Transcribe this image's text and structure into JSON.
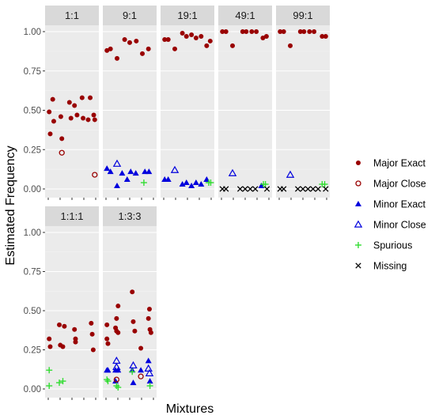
{
  "chart_data": {
    "type": "scatter",
    "xlabel": "Mixtures",
    "ylabel": "Estimated Frequency",
    "ylim": [
      0,
      1
    ],
    "yticks": [
      "0.00",
      "0.25",
      "0.50",
      "0.75",
      "1.00"
    ],
    "legend_position": "right",
    "grid": true,
    "series": [
      {
        "name": "Major Exact",
        "shape": "filled-circle",
        "color": "#990000"
      },
      {
        "name": "Major Close",
        "shape": "open-circle",
        "color": "#990000"
      },
      {
        "name": "Minor Exact",
        "shape": "filled-triangle",
        "color": "#0000dd"
      },
      {
        "name": "Minor Close",
        "shape": "open-triangle",
        "color": "#0000dd"
      },
      {
        "name": "Spurious",
        "shape": "plus",
        "color": "#33dd33"
      },
      {
        "name": "Missing",
        "shape": "cross",
        "color": "#000000"
      }
    ],
    "panels": [
      {
        "label": "1:1",
        "points": [
          {
            "s": 0,
            "x": 0.05,
            "y": 0.49
          },
          {
            "s": 0,
            "x": 0.07,
            "y": 0.35
          },
          {
            "s": 0,
            "x": 0.12,
            "y": 0.57
          },
          {
            "s": 0,
            "x": 0.14,
            "y": 0.43
          },
          {
            "s": 0,
            "x": 0.28,
            "y": 0.46
          },
          {
            "s": 0,
            "x": 0.3,
            "y": 0.32
          },
          {
            "s": 1,
            "x": 0.3,
            "y": 0.23
          },
          {
            "s": 0,
            "x": 0.45,
            "y": 0.55
          },
          {
            "s": 0,
            "x": 0.48,
            "y": 0.45
          },
          {
            "s": 0,
            "x": 0.55,
            "y": 0.53
          },
          {
            "s": 0,
            "x": 0.6,
            "y": 0.47
          },
          {
            "s": 0,
            "x": 0.7,
            "y": 0.58
          },
          {
            "s": 0,
            "x": 0.72,
            "y": 0.45
          },
          {
            "s": 0,
            "x": 0.82,
            "y": 0.44
          },
          {
            "s": 0,
            "x": 0.86,
            "y": 0.58
          },
          {
            "s": 0,
            "x": 0.93,
            "y": 0.47
          },
          {
            "s": 0,
            "x": 0.95,
            "y": 0.44
          },
          {
            "s": 1,
            "x": 0.95,
            "y": 0.09
          }
        ]
      },
      {
        "label": "9:1",
        "points": [
          {
            "s": 0,
            "x": 0.05,
            "y": 0.88
          },
          {
            "s": 0,
            "x": 0.12,
            "y": 0.89
          },
          {
            "s": 0,
            "x": 0.25,
            "y": 0.83
          },
          {
            "s": 0,
            "x": 0.4,
            "y": 0.95
          },
          {
            "s": 0,
            "x": 0.5,
            "y": 0.93
          },
          {
            "s": 0,
            "x": 0.63,
            "y": 0.94
          },
          {
            "s": 0,
            "x": 0.75,
            "y": 0.86
          },
          {
            "s": 0,
            "x": 0.87,
            "y": 0.89
          },
          {
            "s": 2,
            "x": 0.05,
            "y": 0.13
          },
          {
            "s": 2,
            "x": 0.12,
            "y": 0.11
          },
          {
            "s": 2,
            "x": 0.25,
            "y": 0.02
          },
          {
            "s": 3,
            "x": 0.25,
            "y": 0.16
          },
          {
            "s": 2,
            "x": 0.35,
            "y": 0.1
          },
          {
            "s": 2,
            "x": 0.45,
            "y": 0.06
          },
          {
            "s": 2,
            "x": 0.52,
            "y": 0.11
          },
          {
            "s": 2,
            "x": 0.62,
            "y": 0.1
          },
          {
            "s": 2,
            "x": 0.8,
            "y": 0.11
          },
          {
            "s": 2,
            "x": 0.88,
            "y": 0.11
          },
          {
            "s": 4,
            "x": 0.78,
            "y": 0.04
          }
        ]
      },
      {
        "label": "19:1",
        "points": [
          {
            "s": 0,
            "x": 0.05,
            "y": 0.95
          },
          {
            "s": 0,
            "x": 0.12,
            "y": 0.95
          },
          {
            "s": 0,
            "x": 0.25,
            "y": 0.89
          },
          {
            "s": 0,
            "x": 0.4,
            "y": 0.99
          },
          {
            "s": 0,
            "x": 0.48,
            "y": 0.97
          },
          {
            "s": 0,
            "x": 0.58,
            "y": 0.98
          },
          {
            "s": 0,
            "x": 0.67,
            "y": 0.96
          },
          {
            "s": 0,
            "x": 0.77,
            "y": 0.97
          },
          {
            "s": 0,
            "x": 0.88,
            "y": 0.91
          },
          {
            "s": 0,
            "x": 0.95,
            "y": 0.94
          },
          {
            "s": 2,
            "x": 0.05,
            "y": 0.06
          },
          {
            "s": 2,
            "x": 0.12,
            "y": 0.06
          },
          {
            "s": 3,
            "x": 0.25,
            "y": 0.12
          },
          {
            "s": 2,
            "x": 0.4,
            "y": 0.03
          },
          {
            "s": 2,
            "x": 0.48,
            "y": 0.04
          },
          {
            "s": 2,
            "x": 0.58,
            "y": 0.02
          },
          {
            "s": 2,
            "x": 0.67,
            "y": 0.04
          },
          {
            "s": 2,
            "x": 0.77,
            "y": 0.03
          },
          {
            "s": 2,
            "x": 0.88,
            "y": 0.06
          },
          {
            "s": 4,
            "x": 0.92,
            "y": 0.04
          },
          {
            "s": 4,
            "x": 0.96,
            "y": 0.04
          }
        ]
      },
      {
        "label": "49:1",
        "points": [
          {
            "s": 0,
            "x": 0.05,
            "y": 1.0
          },
          {
            "s": 0,
            "x": 0.12,
            "y": 1.0
          },
          {
            "s": 0,
            "x": 0.25,
            "y": 0.91
          },
          {
            "s": 0,
            "x": 0.45,
            "y": 1.0
          },
          {
            "s": 0,
            "x": 0.52,
            "y": 1.0
          },
          {
            "s": 0,
            "x": 0.63,
            "y": 1.0
          },
          {
            "s": 0,
            "x": 0.72,
            "y": 1.0
          },
          {
            "s": 0,
            "x": 0.85,
            "y": 0.96
          },
          {
            "s": 0,
            "x": 0.92,
            "y": 0.97
          },
          {
            "s": 5,
            "x": 0.05,
            "y": 0.0
          },
          {
            "s": 5,
            "x": 0.12,
            "y": 0.0
          },
          {
            "s": 3,
            "x": 0.25,
            "y": 0.1
          },
          {
            "s": 5,
            "x": 0.4,
            "y": 0.0
          },
          {
            "s": 5,
            "x": 0.5,
            "y": 0.0
          },
          {
            "s": 5,
            "x": 0.6,
            "y": 0.0
          },
          {
            "s": 5,
            "x": 0.7,
            "y": 0.0
          },
          {
            "s": 2,
            "x": 0.82,
            "y": 0.02
          },
          {
            "s": 4,
            "x": 0.86,
            "y": 0.03
          },
          {
            "s": 4,
            "x": 0.9,
            "y": 0.03
          },
          {
            "s": 5,
            "x": 0.93,
            "y": 0.0
          }
        ]
      },
      {
        "label": "99:1",
        "points": [
          {
            "s": 0,
            "x": 0.05,
            "y": 1.0
          },
          {
            "s": 0,
            "x": 0.12,
            "y": 1.0
          },
          {
            "s": 0,
            "x": 0.25,
            "y": 0.91
          },
          {
            "s": 0,
            "x": 0.45,
            "y": 1.0
          },
          {
            "s": 0,
            "x": 0.52,
            "y": 1.0
          },
          {
            "s": 0,
            "x": 0.63,
            "y": 1.0
          },
          {
            "s": 0,
            "x": 0.72,
            "y": 1.0
          },
          {
            "s": 0,
            "x": 0.88,
            "y": 0.97
          },
          {
            "s": 0,
            "x": 0.95,
            "y": 0.97
          },
          {
            "s": 5,
            "x": 0.05,
            "y": 0.0
          },
          {
            "s": 5,
            "x": 0.12,
            "y": 0.0
          },
          {
            "s": 3,
            "x": 0.25,
            "y": 0.09
          },
          {
            "s": 5,
            "x": 0.4,
            "y": 0.0
          },
          {
            "s": 5,
            "x": 0.5,
            "y": 0.0
          },
          {
            "s": 5,
            "x": 0.6,
            "y": 0.0
          },
          {
            "s": 5,
            "x": 0.7,
            "y": 0.0
          },
          {
            "s": 5,
            "x": 0.8,
            "y": 0.0
          },
          {
            "s": 4,
            "x": 0.88,
            "y": 0.03
          },
          {
            "s": 4,
            "x": 0.93,
            "y": 0.03
          },
          {
            "s": 5,
            "x": 0.95,
            "y": 0.0
          }
        ]
      },
      {
        "label": "1:1:1",
        "points": [
          {
            "s": 0,
            "x": 0.05,
            "y": 0.32
          },
          {
            "s": 0,
            "x": 0.07,
            "y": 0.27
          },
          {
            "s": 0,
            "x": 0.25,
            "y": 0.41
          },
          {
            "s": 0,
            "x": 0.27,
            "y": 0.28
          },
          {
            "s": 0,
            "x": 0.32,
            "y": 0.27
          },
          {
            "s": 0,
            "x": 0.35,
            "y": 0.4
          },
          {
            "s": 0,
            "x": 0.55,
            "y": 0.38
          },
          {
            "s": 0,
            "x": 0.57,
            "y": 0.32
          },
          {
            "s": 0,
            "x": 0.57,
            "y": 0.3
          },
          {
            "s": 0,
            "x": 0.88,
            "y": 0.42
          },
          {
            "s": 0,
            "x": 0.9,
            "y": 0.35
          },
          {
            "s": 0,
            "x": 0.92,
            "y": 0.25
          },
          {
            "s": 4,
            "x": 0.05,
            "y": 0.12
          },
          {
            "s": 4,
            "x": 0.05,
            "y": 0.02
          },
          {
            "s": 4,
            "x": 0.25,
            "y": 0.04
          },
          {
            "s": 4,
            "x": 0.32,
            "y": 0.05
          }
        ]
      },
      {
        "label": "1:3:3",
        "points": [
          {
            "s": 0,
            "x": 0.05,
            "y": 0.41
          },
          {
            "s": 0,
            "x": 0.05,
            "y": 0.32
          },
          {
            "s": 0,
            "x": 0.07,
            "y": 0.29
          },
          {
            "s": 0,
            "x": 0.22,
            "y": 0.39
          },
          {
            "s": 0,
            "x": 0.24,
            "y": 0.37
          },
          {
            "s": 0,
            "x": 0.24,
            "y": 0.45
          },
          {
            "s": 0,
            "x": 0.27,
            "y": 0.53
          },
          {
            "s": 0,
            "x": 0.27,
            "y": 0.36
          },
          {
            "s": 0,
            "x": 0.55,
            "y": 0.62
          },
          {
            "s": 0,
            "x": 0.57,
            "y": 0.43
          },
          {
            "s": 0,
            "x": 0.6,
            "y": 0.37
          },
          {
            "s": 0,
            "x": 0.72,
            "y": 0.26
          },
          {
            "s": 0,
            "x": 0.87,
            "y": 0.45
          },
          {
            "s": 0,
            "x": 0.89,
            "y": 0.51
          },
          {
            "s": 0,
            "x": 0.9,
            "y": 0.38
          },
          {
            "s": 0,
            "x": 0.92,
            "y": 0.36
          },
          {
            "s": 2,
            "x": 0.05,
            "y": 0.12
          },
          {
            "s": 2,
            "x": 0.07,
            "y": 0.12
          },
          {
            "s": 2,
            "x": 0.22,
            "y": 0.12
          },
          {
            "s": 3,
            "x": 0.24,
            "y": 0.18
          },
          {
            "s": 3,
            "x": 0.24,
            "y": 0.14
          },
          {
            "s": 2,
            "x": 0.27,
            "y": 0.12
          },
          {
            "s": 2,
            "x": 0.22,
            "y": 0.05
          },
          {
            "s": 2,
            "x": 0.55,
            "y": 0.12
          },
          {
            "s": 3,
            "x": 0.57,
            "y": 0.15
          },
          {
            "s": 2,
            "x": 0.57,
            "y": 0.04
          },
          {
            "s": 2,
            "x": 0.72,
            "y": 0.12
          },
          {
            "s": 2,
            "x": 0.87,
            "y": 0.18
          },
          {
            "s": 3,
            "x": 0.87,
            "y": 0.13
          },
          {
            "s": 3,
            "x": 0.89,
            "y": 0.1
          },
          {
            "s": 2,
            "x": 0.9,
            "y": 0.05
          },
          {
            "s": 4,
            "x": 0.05,
            "y": 0.06
          },
          {
            "s": 4,
            "x": 0.07,
            "y": 0.05
          },
          {
            "s": 4,
            "x": 0.24,
            "y": 0.02
          },
          {
            "s": 4,
            "x": 0.27,
            "y": 0.01
          },
          {
            "s": 4,
            "x": 0.55,
            "y": 0.11
          },
          {
            "s": 1,
            "x": 0.24,
            "y": 0.06
          },
          {
            "s": 1,
            "x": 0.72,
            "y": 0.08
          },
          {
            "s": 4,
            "x": 0.9,
            "y": 0.02
          }
        ]
      }
    ]
  }
}
